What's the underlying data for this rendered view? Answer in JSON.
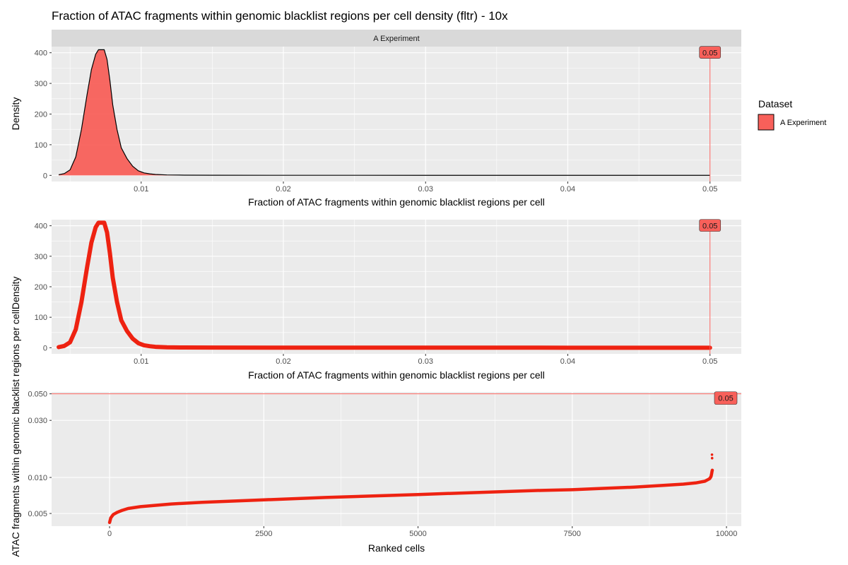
{
  "title": "Fraction of ATAC fragments within genomic blacklist regions per cell density (fltr) - 10x",
  "legend": {
    "title": "Dataset",
    "entries": [
      {
        "label": "A Experiment",
        "color": "#f8605a"
      }
    ]
  },
  "chart_data": [
    {
      "type": "area",
      "panel": "density-filled",
      "strip_label": "A Experiment",
      "xlabel": "Fraction of ATAC fragments within genomic blacklist regions per cell",
      "ylabel": "Density",
      "xlim": [
        0.0037,
        0.0522
      ],
      "ylim": [
        -20,
        420
      ],
      "xticks": [
        0.01,
        0.02,
        0.03,
        0.04,
        0.05
      ],
      "xtick_labels": [
        "0.01",
        "0.02",
        "0.03",
        "0.04",
        "0.05"
      ],
      "yticks": [
        0,
        100,
        200,
        300,
        400
      ],
      "ytick_labels": [
        "0",
        "100",
        "200",
        "300",
        "400"
      ],
      "threshold": {
        "value": 0.05,
        "label": "0.05",
        "color": "#f8605a"
      },
      "series": [
        {
          "name": "A Experiment",
          "fill": "#f8605a",
          "x": [
            0.0042,
            0.0046,
            0.005,
            0.0054,
            0.0058,
            0.0062,
            0.0065,
            0.0068,
            0.007,
            0.0072,
            0.0074,
            0.0076,
            0.0078,
            0.008,
            0.0083,
            0.0086,
            0.009,
            0.0094,
            0.0098,
            0.0102,
            0.0106,
            0.011,
            0.0118,
            0.013,
            0.015,
            0.02,
            0.03,
            0.04,
            0.05
          ],
          "y": [
            2,
            6,
            18,
            60,
            150,
            265,
            345,
            395,
            410,
            410,
            410,
            378,
            310,
            230,
            150,
            90,
            55,
            30,
            15,
            8,
            5,
            3,
            1.5,
            0.8,
            0.5,
            0.3,
            0.2,
            0.1,
            0.1
          ]
        }
      ]
    },
    {
      "type": "line",
      "panel": "density-points",
      "xlabel": "Fraction of ATAC fragments within genomic blacklist regions per cell",
      "ylabel": "ATAC fragments within genomic blacklist regions per cellDensity",
      "xlim": [
        0.0037,
        0.0522
      ],
      "ylim": [
        -20,
        420
      ],
      "xticks": [
        0.01,
        0.02,
        0.03,
        0.04,
        0.05
      ],
      "xtick_labels": [
        "0.01",
        "0.02",
        "0.03",
        "0.04",
        "0.05"
      ],
      "yticks": [
        0,
        100,
        200,
        300,
        400
      ],
      "ytick_labels": [
        "0",
        "100",
        "200",
        "300",
        "400"
      ],
      "threshold": {
        "value": 0.05,
        "label": "0.05",
        "color": "#f8605a"
      },
      "series": [
        {
          "name": "A Experiment",
          "color": "#ee2211",
          "x": [
            0.0042,
            0.0046,
            0.005,
            0.0054,
            0.0058,
            0.0062,
            0.0065,
            0.0068,
            0.007,
            0.0072,
            0.0074,
            0.0076,
            0.0078,
            0.008,
            0.0083,
            0.0086,
            0.009,
            0.0094,
            0.0098,
            0.0102,
            0.0106,
            0.011,
            0.0118,
            0.013,
            0.015,
            0.02,
            0.03,
            0.04,
            0.05
          ],
          "y": [
            2,
            6,
            18,
            60,
            150,
            265,
            345,
            395,
            410,
            410,
            410,
            378,
            310,
            230,
            150,
            90,
            55,
            30,
            15,
            8,
            5,
            3,
            1.5,
            0.8,
            0.5,
            0.3,
            0.2,
            0.1,
            0.1
          ]
        }
      ]
    },
    {
      "type": "scatter",
      "panel": "ranked",
      "xlabel": "Ranked cells",
      "ylabel": "",
      "xlim": [
        -940,
        10240
      ],
      "ylim_log10": [
        -2.407,
        -1.2856
      ],
      "y_scale": "log10",
      "xticks": [
        0,
        2500,
        5000,
        7500,
        10000
      ],
      "xtick_labels": [
        "0",
        "2500",
        "5000",
        "7500",
        "10000"
      ],
      "yticks": [
        0.005,
        0.01,
        0.03,
        0.05
      ],
      "ytick_labels": [
        "0.005",
        "0.010",
        "0.030",
        "0.050"
      ],
      "threshold": {
        "value": 0.05,
        "label": "0.05",
        "color": "#f8605a"
      },
      "series": [
        {
          "name": "A Experiment",
          "color": "#ee2211",
          "x": [
            0,
            20,
            60,
            120,
            200,
            300,
            500,
            1000,
            1500,
            2500,
            3500,
            5000,
            6000,
            7000,
            7500,
            8000,
            8500,
            9000,
            9300,
            9500,
            9650,
            9700,
            9730,
            9750,
            9760,
            9765,
            9770
          ],
          "y": [
            0.0042,
            0.0046,
            0.0049,
            0.0051,
            0.0053,
            0.0055,
            0.0057,
            0.006,
            0.0062,
            0.0065,
            0.0068,
            0.0072,
            0.0075,
            0.0078,
            0.0079,
            0.0081,
            0.0083,
            0.0086,
            0.0088,
            0.009,
            0.0093,
            0.0096,
            0.0098,
            0.0102,
            0.0108,
            0.0112,
            0.0115
          ]
        }
      ],
      "outliers": {
        "x": [
          9765,
          9767
        ],
        "y": [
          0.0155,
          0.0145
        ]
      }
    }
  ]
}
